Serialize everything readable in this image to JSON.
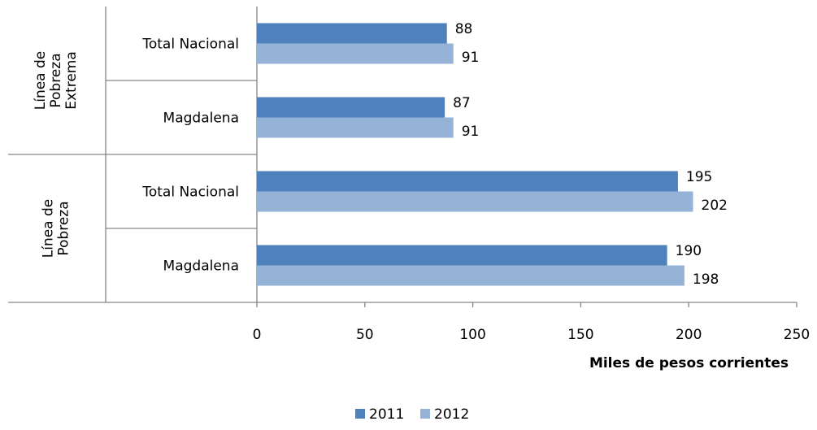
{
  "chart_data": {
    "type": "bar",
    "orientation": "horizontal",
    "groups": [
      {
        "label_lines": [
          "Línea de",
          "Pobreza",
          "Extrema"
        ],
        "categories": [
          "Total Nacional",
          "Magdalena"
        ]
      },
      {
        "label_lines": [
          "Línea de",
          "Pobreza"
        ],
        "categories": [
          "Total Nacional",
          "Magdalena"
        ]
      }
    ],
    "series": [
      {
        "name": "2011",
        "color": "#4F81BD",
        "values": [
          88,
          87,
          195,
          190
        ]
      },
      {
        "name": "2012",
        "color": "#95B3D7",
        "values": [
          91,
          91,
          202,
          198
        ]
      }
    ],
    "xlabel": "Miles de pesos corrientes",
    "xlim": [
      0,
      250
    ],
    "xticks": [
      0,
      50,
      100,
      150,
      200,
      250
    ],
    "grid": false,
    "legend_position": "bottom"
  }
}
